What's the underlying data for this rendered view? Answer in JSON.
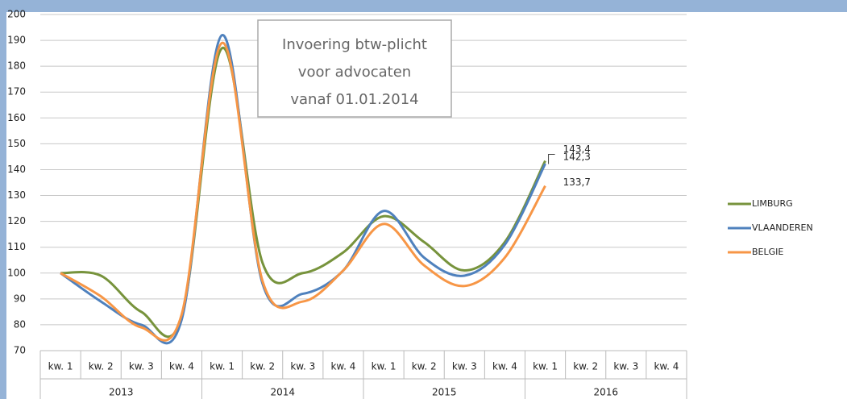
{
  "chart_data": {
    "type": "line",
    "categories": [
      "kw. 1",
      "kw. 2",
      "kw. 3",
      "kw. 4",
      "kw. 1",
      "kw. 2",
      "kw. 3",
      "kw. 4",
      "kw. 1",
      "kw. 2",
      "kw. 3",
      "kw. 4",
      "kw. 1",
      "kw. 2",
      "kw. 3",
      "kw. 4"
    ],
    "x_groups": [
      "2013",
      "2014",
      "2015",
      "2016"
    ],
    "series": [
      {
        "name": "LIMBURG",
        "color": "#77933c",
        "values": [
          100,
          99,
          85,
          83,
          187,
          104,
          100,
          108,
          122,
          112,
          101,
          112,
          143.4,
          null,
          null,
          null
        ],
        "value_labels": [
          null,
          null,
          null,
          null,
          null,
          null,
          null,
          null,
          null,
          null,
          null,
          null,
          "143,4",
          null,
          null,
          null
        ]
      },
      {
        "name": "VLAANDEREN",
        "color": "#4f81bd",
        "values": [
          100,
          89,
          80,
          82,
          192,
          96,
          92,
          101,
          124,
          106,
          99,
          111,
          142.3,
          null,
          null,
          null
        ],
        "value_labels": [
          null,
          null,
          null,
          null,
          null,
          null,
          null,
          null,
          null,
          null,
          null,
          null,
          "142,3",
          null,
          null,
          null
        ]
      },
      {
        "name": "BELGIE",
        "color": "#f79646",
        "values": [
          100,
          91,
          79,
          84,
          189,
          97,
          89,
          101,
          119,
          103,
          95,
          106,
          133.7,
          null,
          null,
          null
        ],
        "value_labels": [
          null,
          null,
          null,
          null,
          null,
          null,
          null,
          null,
          null,
          null,
          null,
          null,
          "133,7",
          null,
          null,
          null
        ]
      }
    ],
    "annotation": [
      "Invoering btw-plicht",
      "voor advocaten",
      "vanaf 01.01.2014"
    ],
    "ylim": [
      70,
      200
    ],
    "yticks": [
      70,
      80,
      90,
      100,
      110,
      120,
      130,
      140,
      150,
      160,
      170,
      180,
      190,
      200
    ],
    "grid": true,
    "legend": "right",
    "smooth": true
  }
}
